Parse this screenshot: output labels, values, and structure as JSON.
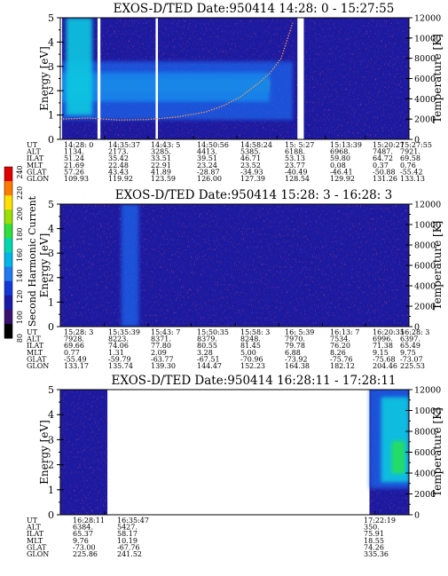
{
  "colorbar": {
    "label": "Second Harmonic Current",
    "ticks": [
      "240",
      "220",
      "200",
      "180",
      "160",
      "140",
      "120",
      "100",
      "80"
    ],
    "colors": [
      "#e00000",
      "#ff7a00",
      "#ffe000",
      "#9ae000",
      "#2ee03a",
      "#00d8b0",
      "#00b8e8",
      "#1e7cf0",
      "#1438d8",
      "#1a1aa8",
      "#3a1070",
      "#000000"
    ]
  },
  "panel_colors": {
    "background": "#1c1aa0",
    "noise_dark": "#3a0f70",
    "noise_red": "#c8142a",
    "band_blue": "#1f6af0",
    "band_cyan": "#10c8e0",
    "band_green": "#28e05a",
    "band_yellow": "#e8f020",
    "temperature_curve": "#ff9a4a",
    "gap": "#ffffff"
  },
  "row_labels": [
    "UT",
    "ALT",
    "ILAT",
    "MLT",
    "GLAT",
    "GLON"
  ],
  "chart_data": [
    {
      "type": "heatmap",
      "title": "EXOS-D/TED   Date:950414  14:28: 0 - 15:27:55",
      "ylabel": "Energy [eV]",
      "y2label": "Temperature [K]",
      "yticks": [
        "5",
        "4",
        "3",
        "2",
        "1",
        "0"
      ],
      "y2ticks": [
        "12000",
        "10000",
        "8000",
        "6000",
        "4000",
        "2000",
        "0"
      ],
      "ylim": [
        0,
        5
      ],
      "y2lim": [
        0,
        12000
      ],
      "x_range_minutes": [
        0,
        60
      ],
      "data_gaps_minutes": [
        [
          -0.5,
          0.3
        ],
        [
          6.4,
          6.9
        ],
        [
          16.4,
          16.8
        ],
        [
          40.8,
          41.9
        ]
      ],
      "bands": [
        {
          "x": [
            0,
            36
          ],
          "center": 2.3,
          "width": 0.22,
          "level": "yellow"
        },
        {
          "x": [
            0,
            36
          ],
          "center": 2.2,
          "width": 0.55,
          "level": "green"
        },
        {
          "x": [
            0,
            36
          ],
          "center": 2.15,
          "width": 1.2,
          "level": "cyan"
        },
        {
          "x": [
            0,
            40
          ],
          "center": 2.0,
          "width": 2.4,
          "level": "blue"
        },
        {
          "x": [
            1,
            5.5
          ],
          "center": 3.0,
          "width": 4.0,
          "level": "cyan"
        }
      ],
      "temperature_curve": [
        [
          0,
          2000
        ],
        [
          5,
          2100
        ],
        [
          10,
          1900
        ],
        [
          15,
          1950
        ],
        [
          20,
          2200
        ],
        [
          25,
          2700
        ],
        [
          28,
          3300
        ],
        [
          31,
          4200
        ],
        [
          34,
          5500
        ],
        [
          36,
          6500
        ],
        [
          38,
          8000
        ],
        [
          40,
          11500
        ]
      ],
      "columns": [
        {
          "x_minutes": 0,
          "UT": "14:28: 0",
          "ALT": "1134.",
          "ILAT": "51.24",
          "MLT": "21.69",
          "GLAT": "57.26",
          "GLON": "109.93"
        },
        {
          "x_minutes": 7.6,
          "UT": "14:35:37",
          "ALT": "2173.",
          "ILAT": "35.42",
          "MLT": "22.48",
          "GLAT": "43.43",
          "GLON": "119.92"
        },
        {
          "x_minutes": 15.1,
          "UT": "14:43: 5",
          "ALT": "3285.",
          "ILAT": "33.51",
          "MLT": "22.91",
          "GLAT": "41.89",
          "GLON": "123.59"
        },
        {
          "x_minutes": 22.9,
          "UT": "14:50:56",
          "ALT": "4413.",
          "ILAT": "39.51",
          "MLT": "23.24",
          "GLAT": "-28.87",
          "GLON": "126.00"
        },
        {
          "x_minutes": 30.4,
          "UT": "14:58:24",
          "ALT": "5385.",
          "ILAT": "46.71",
          "MLT": "23.52",
          "GLAT": "-34.93",
          "GLON": "127.39"
        },
        {
          "x_minutes": 37.3,
          "UT": "15: 5:27",
          "ALT": "6188.",
          "ILAT": "53.13",
          "MLT": "23.77",
          "GLAT": "-40.49",
          "GLON": "128.54"
        },
        {
          "x_minutes": 45.6,
          "UT": "15:13:39",
          "ALT": "6968.",
          "ILAT": "59.80",
          "MLT": "0.08",
          "GLAT": "-46.41",
          "GLON": "129.92"
        },
        {
          "x_minutes": 52.5,
          "UT": "15:20:27",
          "ALT": "7487.",
          "ILAT": "64.72",
          "MLT": "0.37",
          "GLAT": "-50.88",
          "GLON": "131.26"
        },
        {
          "x_minutes": 60,
          "UT": "15:27:55",
          "ALT": "7921.",
          "ILAT": "69.58",
          "MLT": "0.76",
          "GLAT": "-55.42",
          "GLON": "133.13"
        }
      ]
    },
    {
      "type": "heatmap",
      "title": "EXOS-D/TED   Date:950414  15:28: 3 - 16:28: 3",
      "ylabel": "Energy [eV]",
      "y2label": "Temperature [K]",
      "yticks": [
        "5",
        "4",
        "3",
        "2",
        "1",
        "0"
      ],
      "y2ticks": [
        "12000",
        "10000",
        "8000",
        "6000",
        "4000",
        "2000",
        "0"
      ],
      "ylim": [
        0,
        5
      ],
      "y2lim": [
        0,
        12000
      ],
      "x_range_minutes": [
        0,
        60
      ],
      "data_gaps_minutes": [],
      "bands": [
        {
          "x": [
            10.5,
            13.5
          ],
          "center": 2.5,
          "width": 5.0,
          "level": "blue"
        }
      ],
      "temperature_curve": [],
      "columns": [
        {
          "x_minutes": 0,
          "UT": "15:28: 3",
          "ALT": "7928.",
          "ILAT": "69.66",
          "MLT": "0.77",
          "GLAT": "-55.49",
          "GLON": "133.17"
        },
        {
          "x_minutes": 7.6,
          "UT": "15:35:39",
          "ALT": "8223.",
          "ILAT": "74.06",
          "MLT": "1.31",
          "GLAT": "-59.79",
          "GLON": "135.74"
        },
        {
          "x_minutes": 15.1,
          "UT": "15:43: 7",
          "ALT": "8371.",
          "ILAT": "77.80",
          "MLT": "2.09",
          "GLAT": "-63.77",
          "GLON": "139.30"
        },
        {
          "x_minutes": 22.5,
          "UT": "15:50:35",
          "ALT": "8379.",
          "ILAT": "80.55",
          "MLT": "3.28",
          "GLAT": "-67.51",
          "GLON": "144.47"
        },
        {
          "x_minutes": 30.1,
          "UT": "15:58: 3",
          "ALT": "8248.",
          "ILAT": "81.45",
          "MLT": "5.00",
          "GLAT": "-70.96",
          "GLON": "152.23"
        },
        {
          "x_minutes": 37.6,
          "UT": "16: 5:39",
          "ALT": "7970.",
          "ILAT": "79.78",
          "MLT": "6.88",
          "GLAT": "-73.92",
          "GLON": "164.38"
        },
        {
          "x_minutes": 45.1,
          "UT": "16:13: 7",
          "ALT": "7534.",
          "ILAT": "76.20",
          "MLT": "8.26",
          "GLAT": "-75.76",
          "GLON": "182.12"
        },
        {
          "x_minutes": 52.5,
          "UT": "16:20:35",
          "ALT": "6996.",
          "ILAT": "71.38",
          "MLT": "9.15",
          "GLAT": "-75.68",
          "GLON": "204.46"
        },
        {
          "x_minutes": 60,
          "UT": "16:28: 3",
          "ALT": "6397.",
          "ILAT": "65.49",
          "MLT": "9.75",
          "GLAT": "-73.07",
          "GLON": "225.53"
        }
      ]
    },
    {
      "type": "heatmap",
      "title": "EXOS-D/TED   Date:950414  16:28:11 - 17:28:11",
      "ylabel": "Energy [eV]",
      "y2label": "Temperature [K]",
      "yticks": [
        "5",
        "4",
        "3",
        "2",
        "1",
        "0"
      ],
      "y2ticks": [
        "12000",
        "10000",
        "8000",
        "6000",
        "4000",
        "2000",
        "0"
      ],
      "ylim": [
        0,
        5
      ],
      "y2lim": [
        0,
        12000
      ],
      "x_range_minutes": [
        0,
        60
      ],
      "data_coverage_minutes": [
        [
          0,
          8.1
        ],
        [
          53.2,
          60
        ]
      ],
      "bands": [
        {
          "x": [
            53.2,
            60
          ],
          "center": 3.3,
          "width": 4.5,
          "level": "blue"
        },
        {
          "x": [
            55.2,
            60
          ],
          "center": 3.0,
          "width": 3.4,
          "level": "cyan"
        },
        {
          "x": [
            57.0,
            59.3
          ],
          "center": 2.3,
          "width": 1.3,
          "level": "green"
        }
      ],
      "temperature_curve": [],
      "columns": [
        {
          "x_minutes": 0,
          "UT": "16:28:11",
          "ALT": "6384.",
          "ILAT": "65.37",
          "MLT": "9.76",
          "GLAT": "-73.00",
          "GLON": "225.86"
        },
        {
          "x_minutes": 7.6,
          "UT": "16:35:47",
          "ALT": "5427.",
          "ILAT": "58.17",
          "MLT": "10.19",
          "GLAT": "-67.76",
          "GLON": "241.52"
        },
        {
          "x_minutes": 54.1,
          "UT": "17:22:19",
          "ALT": "350.",
          "ILAT": "75.91",
          "MLT": "18.55",
          "GLAT": "74.26",
          "GLON": "335.36"
        }
      ]
    }
  ]
}
